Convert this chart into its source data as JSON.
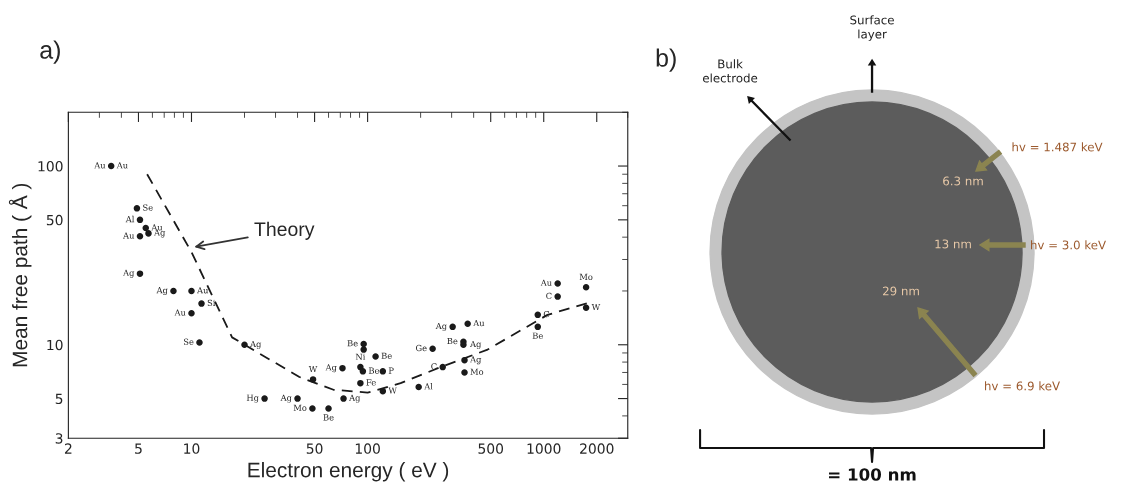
{
  "chart_data": [
    {
      "type": "scatter",
      "title": "a)",
      "xlabel": "Electron energy ( eV )",
      "ylabel": "Mean free path ( Å )",
      "log": "xy",
      "xlim": [
        2,
        3000
      ],
      "ylim": [
        3,
        200
      ],
      "xticks": [
        2,
        5,
        10,
        50,
        100,
        500,
        1000,
        2000
      ],
      "yticks": [
        3,
        5,
        10,
        50,
        100
      ],
      "grid": false,
      "series": [
        {
          "type": "scatter",
          "marker": "circle",
          "color": "#1a1a1a",
          "x": [
            3.5,
            4.9,
            5.1,
            5.5,
            5.1,
            5.7,
            5.1,
            7.9,
            10,
            11.4,
            10,
            11.1,
            20,
            49,
            26,
            40,
            48.6,
            60,
            73,
            72,
            91,
            94,
            95,
            95,
            91,
            111,
            122,
            122,
            195,
            234,
            267,
            304,
            370,
            350,
            350,
            355,
            355,
            925,
            925,
            1200,
            1200,
            1740,
            1740
          ],
          "values": [
            100,
            58,
            50,
            45,
            40.5,
            42,
            25,
            20,
            20,
            17,
            15,
            10.3,
            10,
            6.4,
            5.0,
            5.0,
            4.4,
            4.4,
            5.0,
            7.4,
            7.5,
            7.1,
            10.1,
            9.4,
            6.1,
            8.6,
            7.1,
            5.5,
            5.8,
            9.5,
            7.5,
            12.6,
            13.1,
            10.4,
            10,
            8.2,
            7.0,
            14.7,
            12.6,
            22,
            18.6,
            21,
            16.1
          ]
        },
        {
          "type": "line",
          "marker": "none",
          "line_style": "dashed",
          "color": "#1a1a1a",
          "x": [
            5.6,
            10,
            17,
            41,
            64,
            100,
            154,
            260,
            480,
            1050,
            1850
          ],
          "values": [
            90,
            33,
            11,
            6.6,
            5.6,
            5.4,
            6.1,
            7.5,
            9.4,
            14.7,
            17.3
          ]
        }
      ],
      "annotations": [
        {
          "text": "Theory",
          "x": 10,
          "y": 35
        },
        {
          "text": "Au",
          "x": 3.5,
          "y": 100
        },
        {
          "text": "Au",
          "x": 3.5,
          "y": 100
        },
        {
          "text": "Se",
          "x": 4.9,
          "y": 58
        },
        {
          "text": "Al",
          "x": 5.1,
          "y": 50
        },
        {
          "text": "Au",
          "x": 5.5,
          "y": 45
        },
        {
          "text": "Au",
          "x": 5.1,
          "y": 40.5
        },
        {
          "text": "Ag",
          "x": 5.7,
          "y": 42
        },
        {
          "text": "Ag",
          "x": 5.1,
          "y": 25
        },
        {
          "text": "Ag",
          "x": 7.9,
          "y": 20
        },
        {
          "text": "Au",
          "x": 10,
          "y": 20
        },
        {
          "text": "Si",
          "x": 11.4,
          "y": 17
        },
        {
          "text": "Au",
          "x": 10,
          "y": 15
        },
        {
          "text": "Se",
          "x": 11.1,
          "y": 10.3
        },
        {
          "text": "Ag",
          "x": 20,
          "y": 10
        },
        {
          "text": "W",
          "x": 49,
          "y": 6.4
        },
        {
          "text": "Hg",
          "x": 26,
          "y": 5.0
        },
        {
          "text": "Ag",
          "x": 40,
          "y": 5.0
        },
        {
          "text": "Mo",
          "x": 48.6,
          "y": 4.4
        },
        {
          "text": "Be",
          "x": 60,
          "y": 4.4
        },
        {
          "text": "Ag",
          "x": 73,
          "y": 5.0
        },
        {
          "text": "Ag",
          "x": 72,
          "y": 7.4
        },
        {
          "text": "Ni",
          "x": 91,
          "y": 7.5
        },
        {
          "text": "Be",
          "x": 94,
          "y": 7.1
        },
        {
          "text": "Be",
          "x": 95,
          "y": 10.1
        },
        {
          "text": "Fe",
          "x": 91,
          "y": 6.1
        },
        {
          "text": "Be",
          "x": 111,
          "y": 8.6
        },
        {
          "text": "P",
          "x": 122,
          "y": 7.1
        },
        {
          "text": "W",
          "x": 122,
          "y": 5.5
        },
        {
          "text": "Al",
          "x": 195,
          "y": 5.8
        },
        {
          "text": "Ge",
          "x": 234,
          "y": 9.5
        },
        {
          "text": "C",
          "x": 267,
          "y": 7.5
        },
        {
          "text": "Ag",
          "x": 304,
          "y": 12.6
        },
        {
          "text": "Au",
          "x": 370,
          "y": 13.1
        },
        {
          "text": "Be",
          "x": 350,
          "y": 10.4
        },
        {
          "text": "Ag",
          "x": 355,
          "y": 10
        },
        {
          "text": "Ag",
          "x": 355,
          "y": 8.2
        },
        {
          "text": "Mo",
          "x": 355,
          "y": 7.0
        },
        {
          "text": "C",
          "x": 925,
          "y": 14.7
        },
        {
          "text": "Be",
          "x": 925,
          "y": 12.6
        },
        {
          "text": "Au",
          "x": 1200,
          "y": 22
        },
        {
          "text": "C",
          "x": 1200,
          "y": 18.6
        },
        {
          "text": "Mo",
          "x": 1740,
          "y": 21
        },
        {
          "text": "W",
          "x": 1740,
          "y": 16.1
        }
      ]
    },
    {
      "type": "other",
      "title": "b)",
      "annotations": [
        "Surface layer",
        "Bulk electrode",
        "hv = 1.487 keV",
        "6.3 nm",
        "13 nm",
        "hv = 3.0 keV",
        "29 nm",
        "hv = 6.9 keV",
        "= 100 nm"
      ]
    }
  ]
}
